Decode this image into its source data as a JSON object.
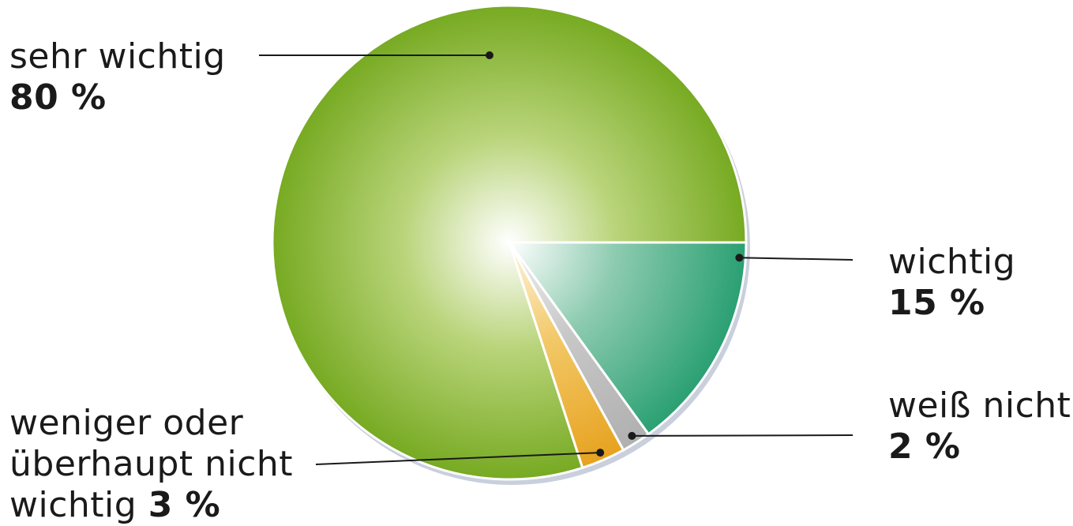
{
  "chart_data": {
    "type": "pie",
    "title": "",
    "unit": "%",
    "slices": [
      {
        "label": "sehr wichtig",
        "value": 80,
        "value_label": "80 %",
        "color": "#7aab24"
      },
      {
        "label": "wichtig",
        "value": 15,
        "value_label": "15 %",
        "color": "#34a374"
      },
      {
        "label": "weiß nicht",
        "value": 2,
        "value_label": "2 %",
        "color": "#b5b5b5"
      },
      {
        "label": "weniger oder überhaupt nicht wichtig",
        "value": 3,
        "value_label": "3 %",
        "color": "#e8a52a"
      }
    ],
    "label_lines": {
      "sehr": [
        "sehr wichtig"
      ],
      "wichtig": [
        "wichtig"
      ],
      "weiss": [
        "weiß nicht"
      ],
      "weniger": [
        "weniger oder",
        "überhaupt nicht",
        "wichtig "
      ]
    }
  }
}
